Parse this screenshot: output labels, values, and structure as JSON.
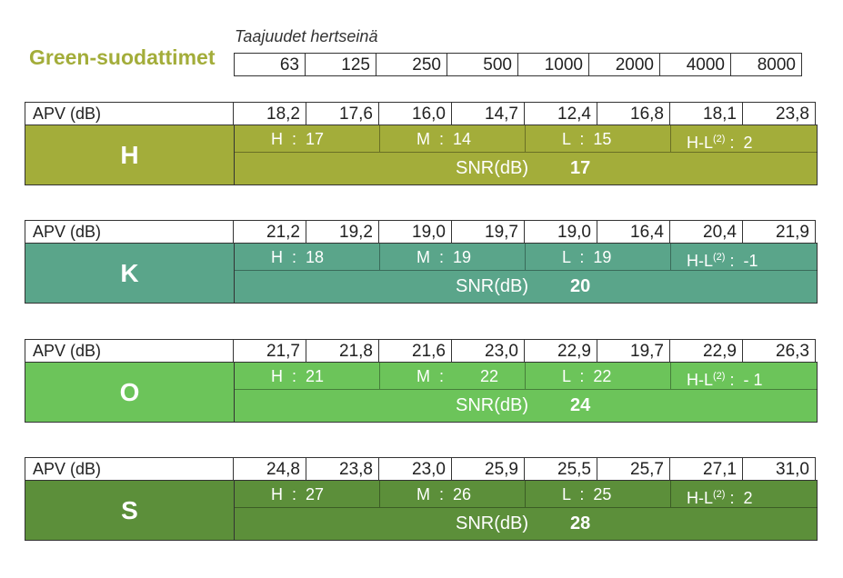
{
  "title": "Green-suodattimet",
  "subtitle": "Taajuudet hertseinä",
  "frequencies": [
    "63",
    "125",
    "250",
    "500",
    "1000",
    "2000",
    "4000",
    "8000"
  ],
  "colors": {
    "title": "#a3ad3a",
    "H": "#a3ad3a",
    "K": "#5aa58a",
    "O": "#6cc45a",
    "S": "#5c8f3a"
  },
  "filters": [
    {
      "apv_label": "APV (dB)",
      "letter": "H",
      "apv": [
        "18,2",
        "17,6",
        "16,0",
        "14,7",
        "12,4",
        "16,8",
        "18,1",
        "23,8"
      ],
      "h": "H  :  17",
      "m": "M  :  14",
      "l": "L  :  15",
      "hl_prefix": "H-L",
      "hl_sup": "(2)",
      "hl_value": " :  2",
      "snr_label": "SNR(dB)",
      "snr": "17"
    },
    {
      "apv_label": "APV (dB)",
      "letter": "K",
      "apv": [
        "21,2",
        "19,2",
        "19,0",
        "19,7",
        "19,0",
        "16,4",
        "20,4",
        "21,9"
      ],
      "h": "H  :  18",
      "m": "M  :  19",
      "l": "L  :  19",
      "hl_prefix": "H-L",
      "hl_sup": "(2)",
      "hl_value": " :  -1",
      "snr_label": "SNR(dB)",
      "snr": "20"
    },
    {
      "apv_label": "APV (dB)",
      "letter": "O",
      "apv": [
        "21,7",
        "21,8",
        "21,6",
        "23,0",
        "22,9",
        "19,7",
        "22,9",
        "26,3"
      ],
      "h": "H  :  21",
      "m": "M  :        22",
      "l": "L  :  22",
      "hl_prefix": "H-L",
      "hl_sup": "(2)",
      "hl_value": " :  - 1",
      "snr_label": "SNR(dB)",
      "snr": "24"
    },
    {
      "apv_label": "APV (dB)",
      "letter": "S",
      "apv": [
        "24,8",
        "23,8",
        "23,0",
        "25,9",
        "25,5",
        "25,7",
        "27,1",
        "31,0"
      ],
      "h": "H  :  27",
      "m": "M  :  26",
      "l": "L  :  25",
      "hl_prefix": "H-L",
      "hl_sup": "(2)",
      "hl_value": " :  2",
      "snr_label": "SNR(dB)",
      "snr": "28"
    }
  ]
}
